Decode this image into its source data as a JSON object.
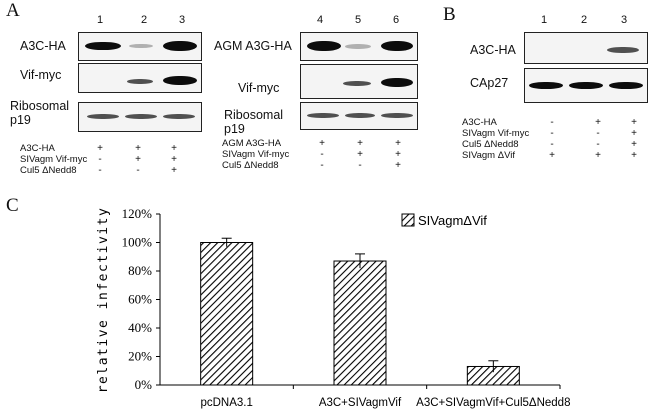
{
  "panels": {
    "A": {
      "letter": "A",
      "left": {
        "lanes": [
          "1",
          "2",
          "3"
        ],
        "blot_labels": [
          "A3C-HA",
          "Vif-myc",
          "Ribosomal",
          "p19"
        ],
        "conditions": [
          {
            "label": "A3C-HA",
            "signs": [
              "+",
              "+",
              "+"
            ]
          },
          {
            "label": "SIVagm Vif-myc",
            "signs": [
              "-",
              "+",
              "+"
            ]
          },
          {
            "label": "Cul5 ΔNedd8",
            "signs": [
              "-",
              "-",
              "+"
            ]
          }
        ]
      },
      "right": {
        "lanes": [
          "4",
          "5",
          "6"
        ],
        "blot_labels": [
          "AGM A3G-HA",
          "Vif-myc",
          "Ribosomal",
          "p19"
        ],
        "conditions": [
          {
            "label": "AGM A3G-HA",
            "signs": [
              "+",
              "+",
              "+"
            ]
          },
          {
            "label": "SIVagm Vif-myc",
            "signs": [
              "-",
              "+",
              "+"
            ]
          },
          {
            "label": "Cul5 ΔNedd8",
            "signs": [
              "-",
              "-",
              "+"
            ]
          }
        ]
      }
    },
    "B": {
      "letter": "B",
      "lanes": [
        "1",
        "2",
        "3"
      ],
      "blot_labels": [
        "A3C-HA",
        "CAp27"
      ],
      "conditions": [
        {
          "label": "A3C-HA",
          "signs": [
            "-",
            "+",
            "+"
          ]
        },
        {
          "label": "SIVagm Vif-myc",
          "signs": [
            "-",
            "-",
            "+"
          ]
        },
        {
          "label": "Cul5 ΔNedd8",
          "signs": [
            "-",
            "-",
            "+"
          ]
        },
        {
          "label": "SIVagm ΔVif",
          "signs": [
            "+",
            "+",
            "+"
          ]
        }
      ]
    },
    "C": {
      "letter": "C"
    }
  },
  "chart_data": {
    "type": "bar",
    "categories": [
      "pcDNA3.1",
      "A3C+SIVagmVif",
      "A3C+SIVagmVif+Cul5ΔNedd8"
    ],
    "series": [
      {
        "name": "SIVagmΔVif",
        "values": [
          100,
          87,
          13
        ],
        "errors": [
          3,
          5,
          4
        ]
      }
    ],
    "ylabel": "relative infectivity",
    "xlabel": "",
    "ylim": [
      0,
      120
    ],
    "yticks": [
      "0%",
      "20%",
      "40%",
      "60%",
      "80%",
      "100%",
      "120%"
    ],
    "legend_position": "top-right",
    "grid": false
  }
}
